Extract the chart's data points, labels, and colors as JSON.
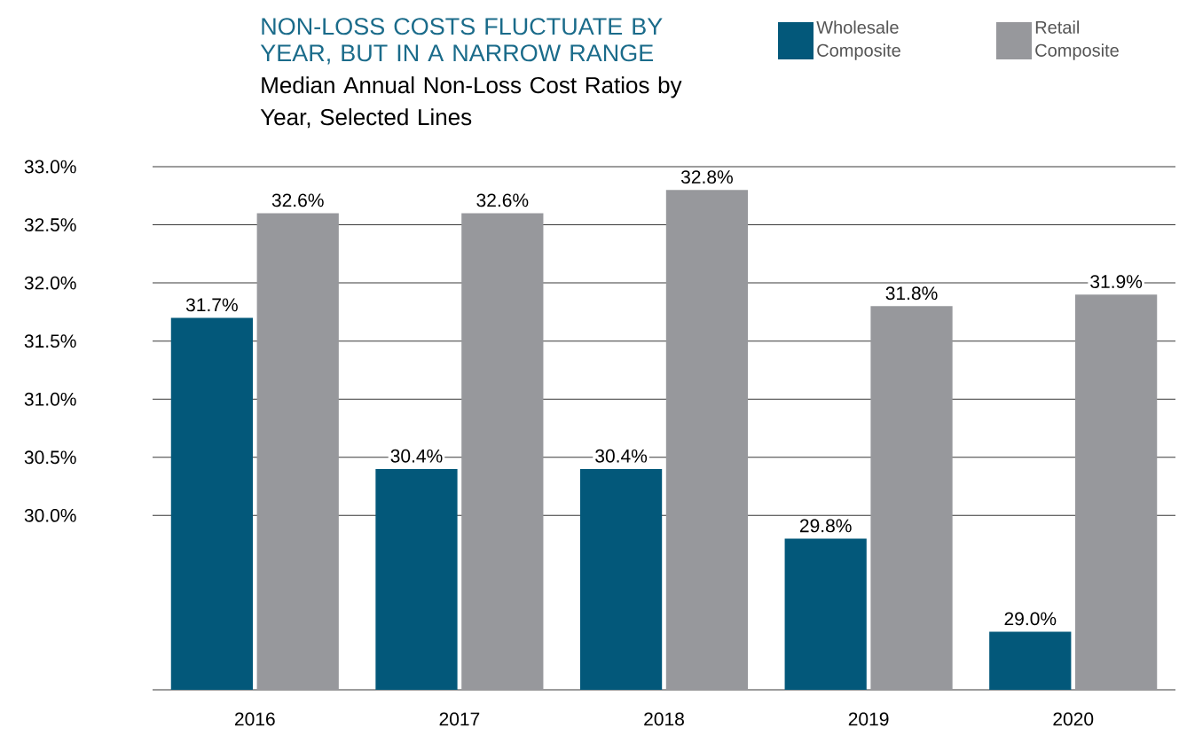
{
  "chart_data": {
    "type": "bar",
    "title": "NON-LOSS COSTS FLUCTUATE BY YEAR, BUT IN A NARROW RANGE",
    "subtitle": "Median Annual Non-Loss Cost Ratios by Year, Selected Lines",
    "categories": [
      "2016",
      "2017",
      "2018",
      "2019",
      "2020"
    ],
    "series": [
      {
        "name": "Wholesale Composite",
        "color": "#03587a",
        "values": [
          31.7,
          30.4,
          30.4,
          29.8,
          29.0
        ],
        "value_labels": [
          "31.7%",
          "30.4%",
          "30.4%",
          "29.8%",
          "29.0%"
        ]
      },
      {
        "name": "Retail Composite",
        "color": "#97989c",
        "values": [
          32.6,
          32.6,
          32.8,
          31.8,
          31.9
        ],
        "value_labels": [
          "32.6%",
          "32.6%",
          "32.8%",
          "31.8%",
          "31.9%"
        ]
      }
    ],
    "ylim": [
      28.5,
      33
    ],
    "yticks": [
      {
        "value": 30,
        "label": "30.0%"
      },
      {
        "value": 30.5,
        "label": "30.5%"
      },
      {
        "value": 31,
        "label": "31.0%"
      },
      {
        "value": 31.5,
        "label": "31.5%"
      },
      {
        "value": 32,
        "label": "32.0%"
      },
      {
        "value": 32.5,
        "label": "32.5%"
      },
      {
        "value": 33,
        "label": "33.0%"
      }
    ],
    "grid": "y",
    "legend": "top right"
  }
}
